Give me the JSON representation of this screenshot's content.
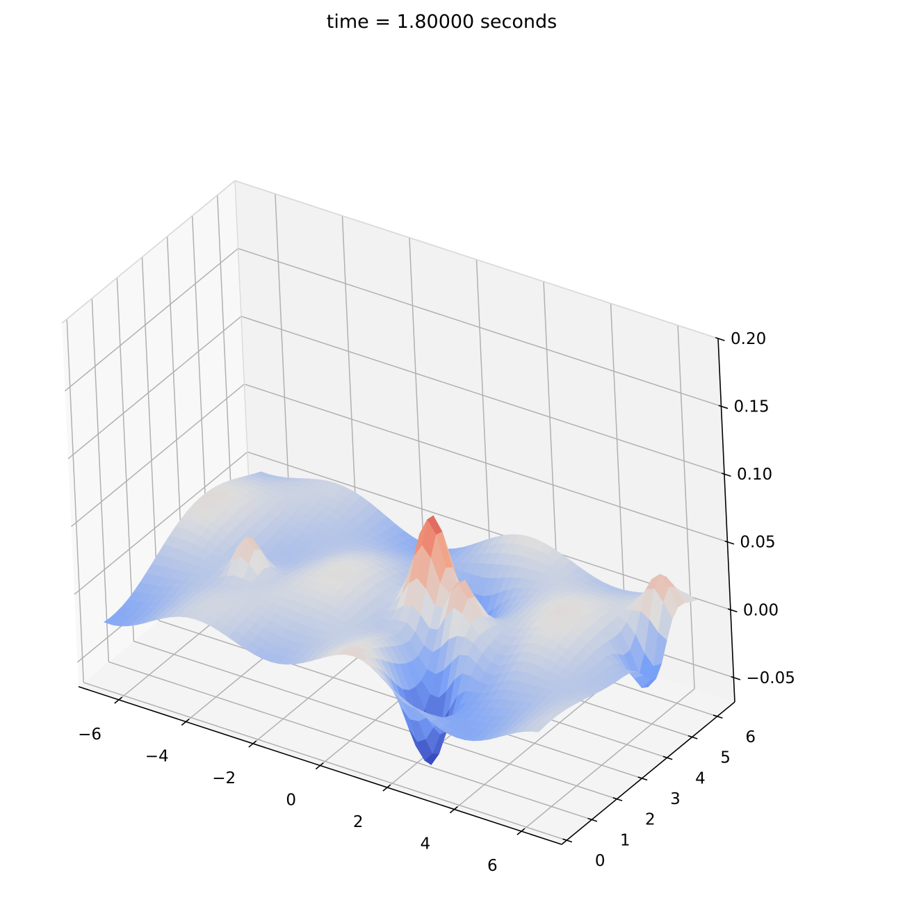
{
  "chart_data": {
    "type": "surface",
    "title": "time = 1.80000 seconds",
    "colormap": "coolwarm",
    "colors": {
      "low": "#3b4cc0",
      "mid": "#dddddd",
      "high": "#b40426"
    },
    "grid": true,
    "x": {
      "label": "",
      "ticks": [
        -6,
        -4,
        -2,
        0,
        2,
        4,
        6
      ],
      "tick_labels": [
        "−6",
        "−4",
        "−2",
        "0",
        "2",
        "4",
        "6"
      ],
      "lim": [
        -7.2,
        7.2
      ]
    },
    "y": {
      "label": "",
      "ticks": [
        0,
        1,
        2,
        3,
        4,
        5,
        6
      ],
      "tick_labels": [
        "0",
        "1",
        "2",
        "3",
        "4",
        "5",
        "6"
      ],
      "lim": [
        -0.2,
        6.7
      ]
    },
    "z": {
      "label": "",
      "ticks": [
        -0.05,
        0.0,
        0.05,
        0.1,
        0.15,
        0.2
      ],
      "tick_labels": [
        "−0.05",
        "0.00",
        "0.05",
        "0.10",
        "0.15",
        "0.20"
      ],
      "lim": [
        -0.068,
        0.2
      ]
    },
    "surface": {
      "x_range": [
        -6.5,
        6.5
      ],
      "y_range": [
        0,
        6.3
      ],
      "z_min": -0.06,
      "z_max": 0.085,
      "features": [
        {
          "kind": "peak",
          "x": 0.8,
          "y": 3.6,
          "z": 0.085
        },
        {
          "kind": "peak",
          "x": 1.9,
          "y": 3.0,
          "z": 0.06
        },
        {
          "kind": "trough",
          "x": 2.3,
          "y": 1.2,
          "z": -0.06
        },
        {
          "kind": "trough",
          "x": 0.9,
          "y": 4.2,
          "z": -0.035
        },
        {
          "kind": "ridge",
          "x": 6.0,
          "y": 5.5,
          "z": 0.03
        }
      ]
    }
  }
}
